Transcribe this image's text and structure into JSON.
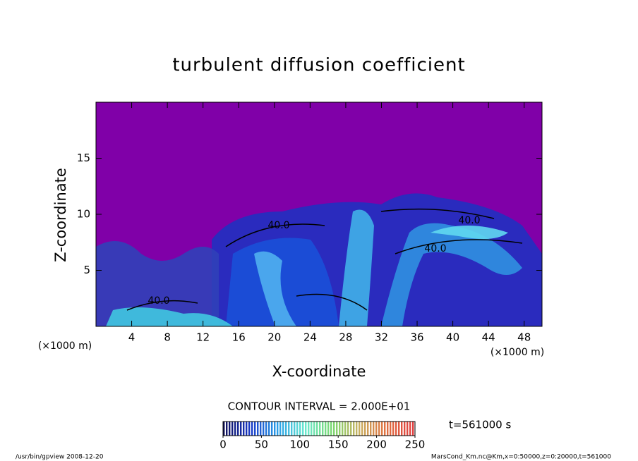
{
  "chart_data": {
    "type": "contour",
    "title": "turbulent diffusion coefficient",
    "x_label": "X-coordinate",
    "y_label": "Z-coordinate",
    "x_unit": "(×1000 m)",
    "y_unit": "(×1000 m)",
    "xlim": [
      0,
      50
    ],
    "xticks": [
      4,
      8,
      12,
      16,
      20,
      24,
      28,
      32,
      36,
      40,
      44,
      48
    ],
    "ylim": [
      0,
      20
    ],
    "yticks": [
      5,
      10,
      15
    ],
    "background_color": "#8000a8",
    "annotations": [
      "40.0",
      "40.0",
      "40.0",
      "40.0"
    ],
    "contour_interval": "CONTOUR INTERVAL = 2.000E+01",
    "time_label": "t=561000 s",
    "colorbar": {
      "clim": [
        0,
        250
      ],
      "ticks": [
        0,
        50,
        100,
        150,
        200,
        250
      ],
      "colors": [
        "#10105a",
        "#1a3ac8",
        "#2aa0e8",
        "#6ae8d0",
        "#7ad870",
        "#c8b060",
        "#e07040",
        "#e04040"
      ]
    },
    "footer_left": "/usr/bin/gpview   2008-12-20",
    "footer_right": "MarsCond_Km.nc@Km,x=0:50000,z=0:20000,t=561000"
  }
}
